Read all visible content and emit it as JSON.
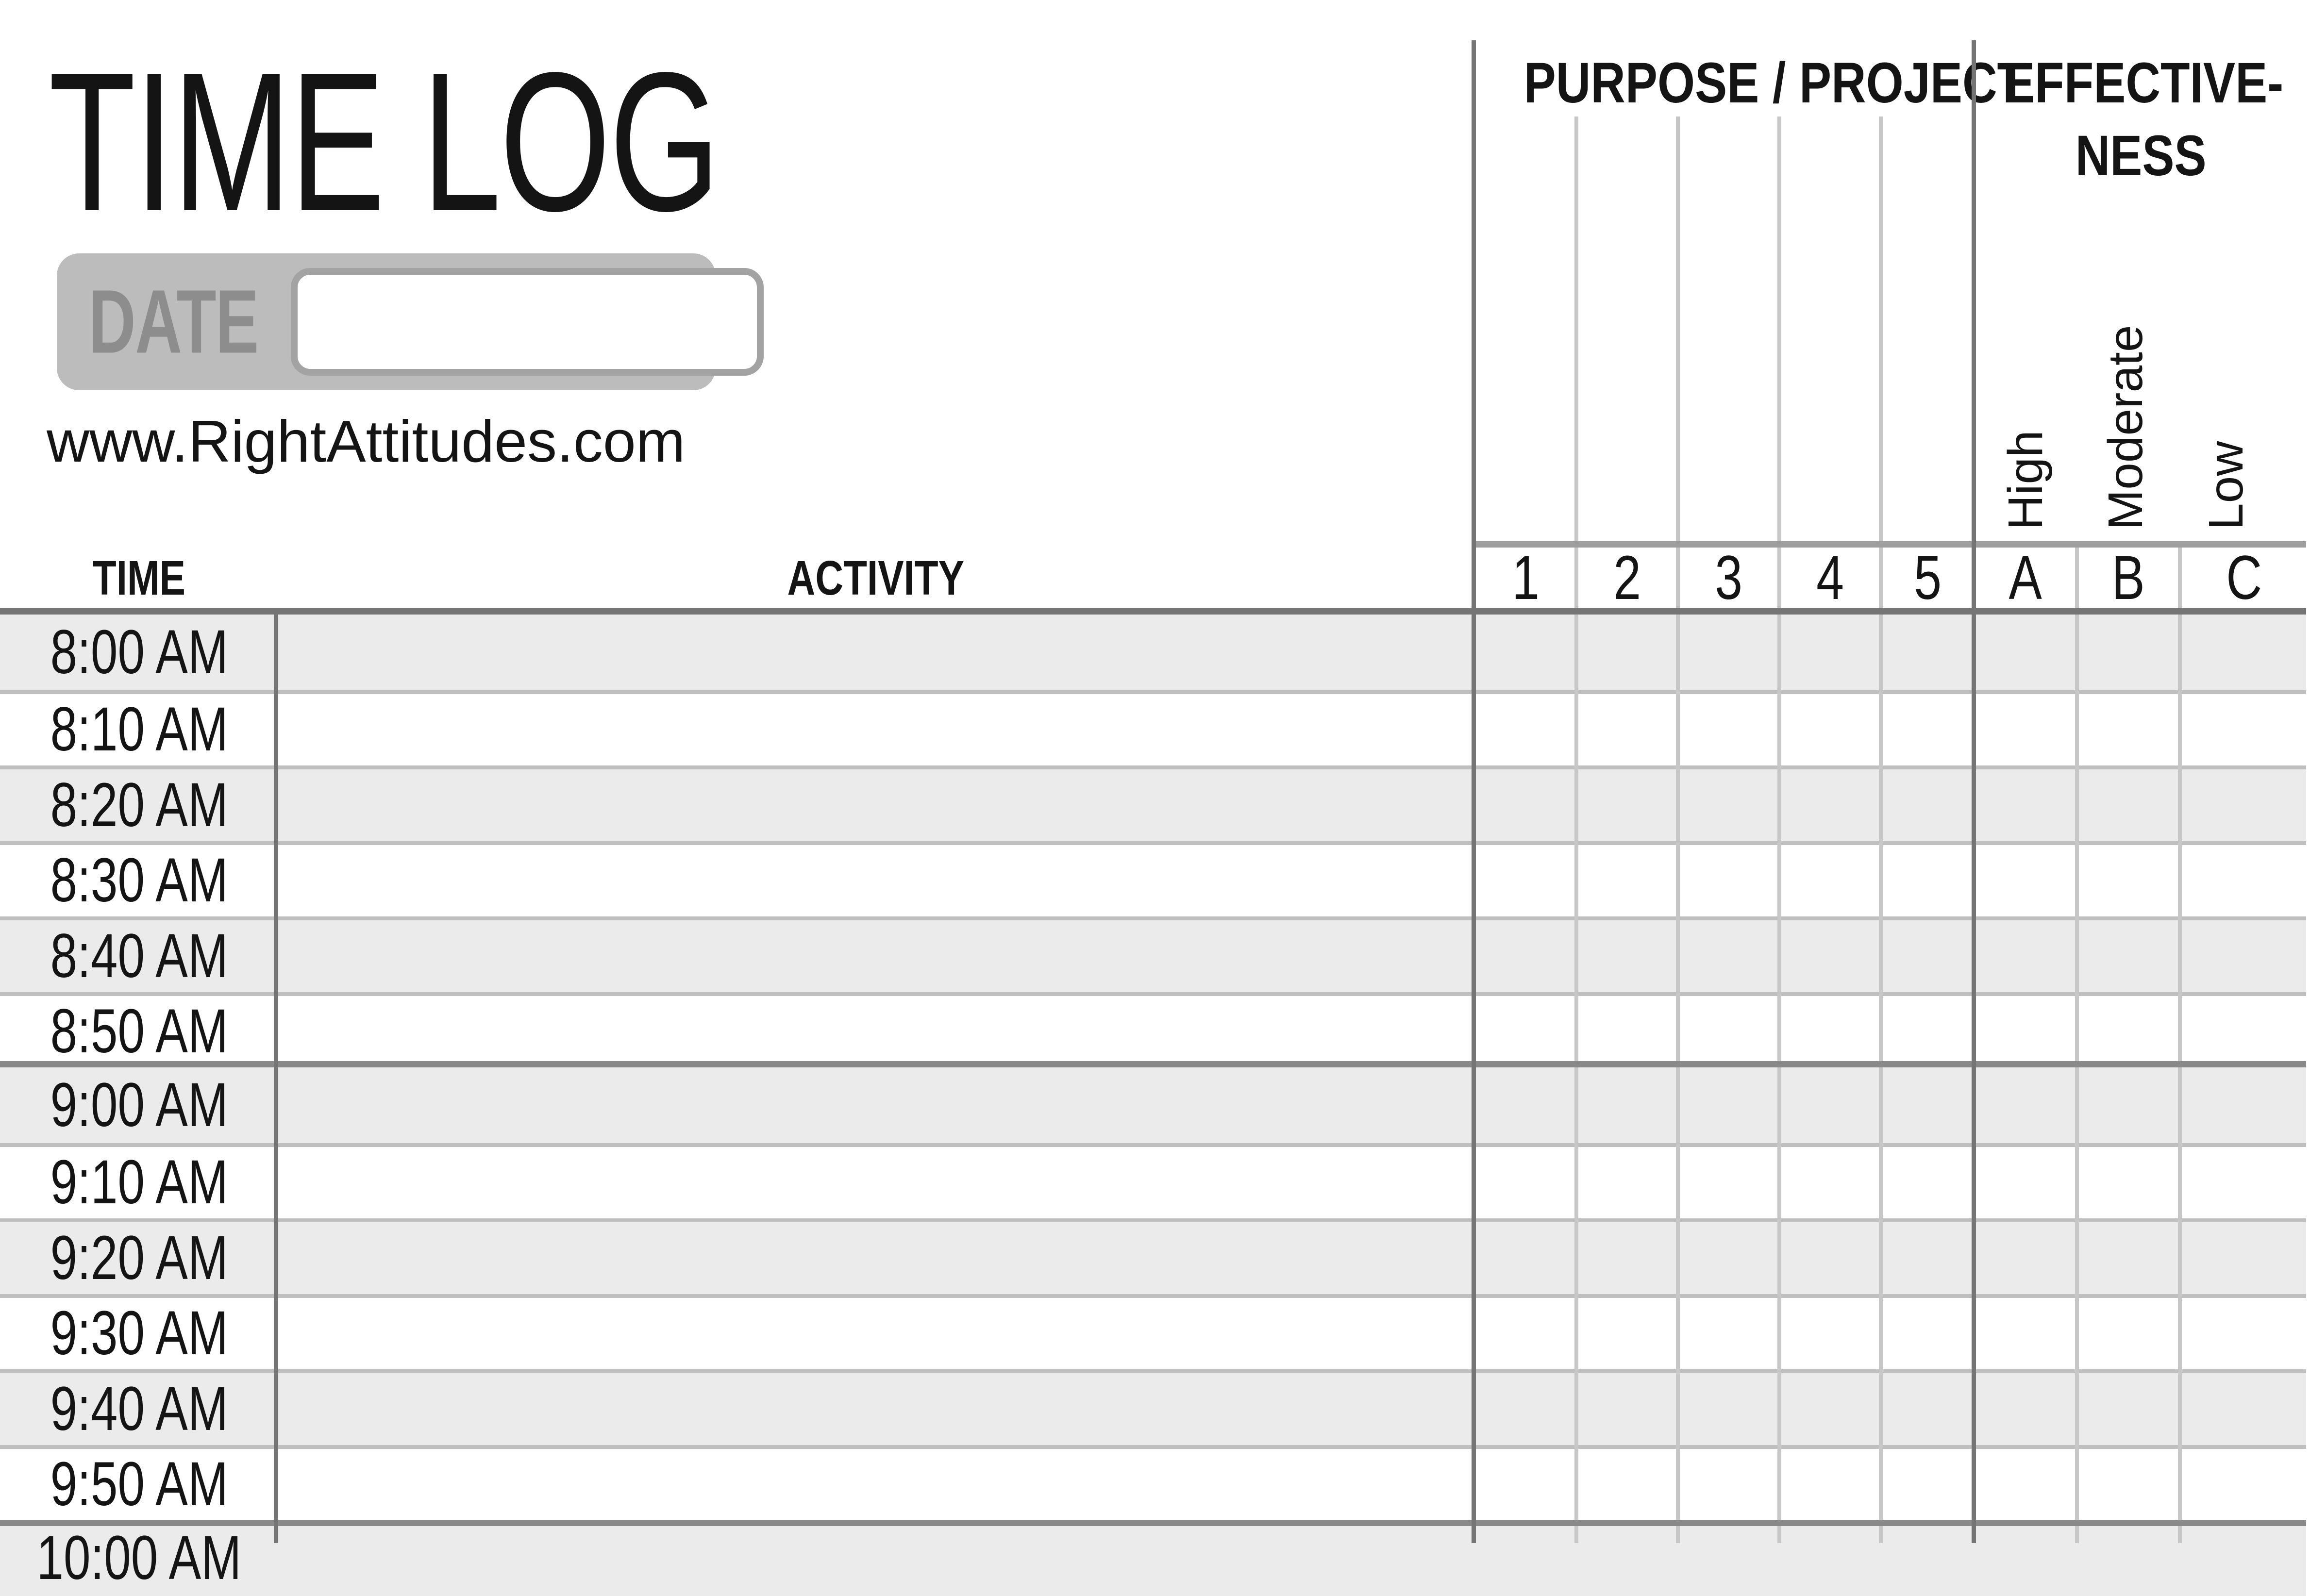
{
  "header": {
    "title": "TIME LOG",
    "date_label": "DATE",
    "date_value": "",
    "website": "www.RightAttitudes.com"
  },
  "table": {
    "purpose_header": "PURPOSE / PROJECT",
    "effectiveness_header_line1": "EFFECTIVE-",
    "effectiveness_header_line2": "NESS",
    "time_header": "TIME",
    "activity_header": "ACTIVITY",
    "purpose_columns": [
      "1",
      "2",
      "3",
      "4",
      "5"
    ],
    "effectiveness_columns": [
      "A",
      "B",
      "C"
    ],
    "effectiveness_scale": [
      "High",
      "Moderate",
      "Low"
    ],
    "rows": [
      {
        "time": "8:00 AM",
        "activity": ""
      },
      {
        "time": "8:10 AM",
        "activity": ""
      },
      {
        "time": "8:20 AM",
        "activity": ""
      },
      {
        "time": "8:30 AM",
        "activity": ""
      },
      {
        "time": "8:40 AM",
        "activity": ""
      },
      {
        "time": "8:50 AM",
        "activity": ""
      },
      {
        "time": "9:00 AM",
        "activity": ""
      },
      {
        "time": "9:10 AM",
        "activity": ""
      },
      {
        "time": "9:20 AM",
        "activity": ""
      },
      {
        "time": "9:30 AM",
        "activity": ""
      },
      {
        "time": "9:40 AM",
        "activity": ""
      },
      {
        "time": "9:50 AM",
        "activity": ""
      },
      {
        "time": "10:00 AM",
        "activity": ""
      }
    ]
  },
  "colors": {
    "row_shade": "#ebebeb",
    "light_grid_line": "#c7c7c7",
    "row_separator": "#bfbfbf",
    "hour_separator": "#898989",
    "dark_grid_line": "#757575",
    "header_divider_bar": "#9e9e9e",
    "date_box_fill": "#bcbcbc",
    "date_label_text": "#8d8d8d",
    "date_input_border": "#a3a3a3",
    "text": "#141414"
  }
}
